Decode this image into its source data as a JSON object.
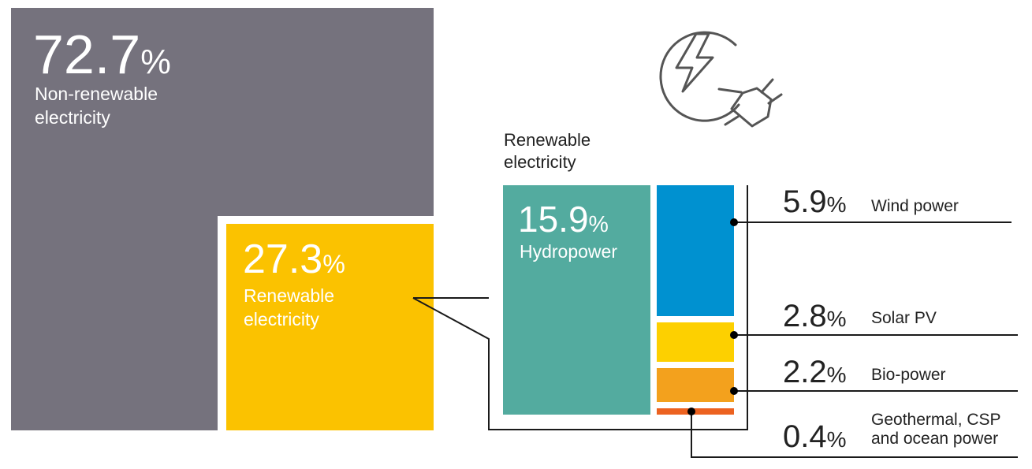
{
  "colors": {
    "non_renewable": "#75727d",
    "renewable": "#fbc200",
    "hydropower": "#53ab9f",
    "wind": "#0091d0",
    "solar": "#fdd000",
    "bio": "#f3a11d",
    "geothermal": "#ec6220",
    "line": "#1a1a1a",
    "icon": "#555555"
  },
  "main": {
    "non_renewable": {
      "value": "72.7",
      "unit": "%",
      "label_line1": "Non-renewable",
      "label_line2": "electricity"
    },
    "renewable": {
      "value": "27.3",
      "unit": "%",
      "label_line1": "Renewable",
      "label_line2": "electricity"
    }
  },
  "breakdown": {
    "title_line1": "Renewable",
    "title_line2": "electricity",
    "hydropower": {
      "value": "15.9",
      "unit": "%",
      "label": "Hydropower"
    }
  },
  "callouts": {
    "wind": {
      "value": "5.9",
      "unit": "%",
      "label": "Wind power"
    },
    "solar": {
      "value": "2.8",
      "unit": "%",
      "label": "Solar PV"
    },
    "bio": {
      "value": "2.2",
      "unit": "%",
      "label": "Bio-power"
    },
    "geo": {
      "value": "0.4",
      "unit": "%",
      "label_line1": "Geothermal, CSP",
      "label_line2": "and ocean power"
    }
  },
  "icon": "electric-plug-lightning-icon",
  "chart_data": {
    "type": "treemap",
    "title": "",
    "series": [
      {
        "name": "Non-renewable electricity",
        "value": 72.7
      },
      {
        "name": "Renewable electricity",
        "value": 27.3,
        "children": [
          {
            "name": "Hydropower",
            "value": 15.9
          },
          {
            "name": "Wind power",
            "value": 5.9
          },
          {
            "name": "Solar PV",
            "value": 2.8
          },
          {
            "name": "Bio-power",
            "value": 2.2
          },
          {
            "name": "Geothermal, CSP and ocean power",
            "value": 0.4
          }
        ]
      }
    ]
  }
}
